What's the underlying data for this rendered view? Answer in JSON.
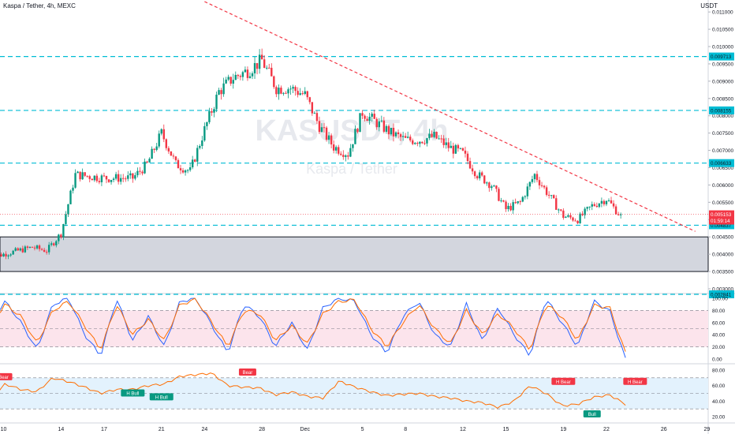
{
  "header": {
    "symbol_title": "Kaspa / Tether, 4h, MEXC",
    "currency": "USDT"
  },
  "watermark": {
    "ticker": "KASUSDT, 4h",
    "name": "Kaspa / Tether"
  },
  "colors": {
    "up": "#089981",
    "down": "#f23645",
    "level_line": "#00bcd4",
    "trend_line": "#f23645",
    "zone_fill": "#d1d4dc",
    "stoch_k": "#2962ff",
    "stoch_d": "#ff6d00",
    "rsi_line": "#ff6d00",
    "stoch_band": "#fce4ec",
    "rsi_band": "#e3f2fd"
  },
  "chart_data": [
    {
      "type": "candlestick",
      "pane": "price",
      "ylim": [
        0.003,
        0.0113
      ],
      "y_ticks": [
        "0.011000",
        "0.010500",
        "0.010000",
        "0.009500",
        "0.009000",
        "0.008500",
        "0.008000",
        "0.007500",
        "0.007000",
        "0.006500",
        "0.006000",
        "0.005500",
        "0.005000",
        "0.004500",
        "0.004000",
        "0.003500",
        "0.003000"
      ],
      "y_tick_values": [
        0.011,
        0.0105,
        0.01,
        0.0095,
        0.009,
        0.0085,
        0.008,
        0.0075,
        0.007,
        0.0065,
        0.006,
        0.0055,
        0.005,
        0.0045,
        0.004,
        0.0035,
        0.003
      ],
      "x_tick_labels": [
        "10",
        "14",
        "17",
        "21",
        "24",
        "28",
        "Dec",
        "5",
        "8",
        "12",
        "15",
        "19",
        "22",
        "26",
        "29"
      ],
      "x_tick_dates": [
        "2022-11-10",
        "2022-11-14",
        "2022-11-17",
        "2022-11-21",
        "2022-11-24",
        "2022-11-28",
        "2022-12-01",
        "2022-12-05",
        "2022-12-08",
        "2022-12-12",
        "2022-12-15",
        "2022-12-19",
        "2022-12-22",
        "2022-12-26",
        "2022-12-29"
      ],
      "horizontal_levels": [
        {
          "label": "0.009713",
          "value": 0.009713
        },
        {
          "label": "0.008155",
          "value": 0.008155
        },
        {
          "label": "0.006633",
          "value": 0.006633
        },
        {
          "label": "0.004837",
          "value": 0.004837
        },
        {
          "label": "0.002841",
          "value": 0.002841
        }
      ],
      "last_price": {
        "label": "0.005153",
        "value": 0.005153,
        "countdown": "01:59:14"
      },
      "demand_zone": {
        "from": 0.0035,
        "to": 0.0045
      },
      "trendline": {
        "from": [
          "2022-11-24",
          0.0113
        ],
        "to": [
          "2022-12-26",
          0.00475
        ]
      },
      "ohlc_key_points": {
        "dates": [
          "2022-11-09",
          "2022-11-12",
          "2022-11-13",
          "2022-11-14",
          "2022-11-15",
          "2022-11-17",
          "2022-11-19",
          "2022-11-20",
          "2022-11-21",
          "2022-11-22",
          "2022-11-23",
          "2022-11-24",
          "2022-11-25",
          "2022-11-26",
          "2022-11-27",
          "2022-11-28",
          "2022-11-29",
          "2022-11-30",
          "2022-12-01",
          "2022-12-02",
          "2022-12-03",
          "2022-12-04",
          "2022-12-05",
          "2022-12-06",
          "2022-12-07",
          "2022-12-08",
          "2022-12-09",
          "2022-12-10",
          "2022-12-11",
          "2022-12-12",
          "2022-12-13",
          "2022-12-14",
          "2022-12-15",
          "2022-12-16",
          "2022-12-17",
          "2022-12-18",
          "2022-12-19",
          "2022-12-20",
          "2022-12-21",
          "2022-12-22",
          "2022-12-23"
        ],
        "close": [
          0.0039,
          0.0042,
          0.0041,
          0.0046,
          0.0063,
          0.0062,
          0.0062,
          0.0066,
          0.0075,
          0.0066,
          0.0064,
          0.0076,
          0.0087,
          0.0091,
          0.0093,
          0.0096,
          0.0088,
          0.0088,
          0.0086,
          0.0077,
          0.0071,
          0.0069,
          0.0081,
          0.0078,
          0.0075,
          0.0073,
          0.0073,
          0.0074,
          0.0071,
          0.0069,
          0.0063,
          0.006,
          0.0053,
          0.0055,
          0.0063,
          0.0057,
          0.0051,
          0.005,
          0.0054,
          0.0056,
          0.0051
        ]
      }
    },
    {
      "type": "line",
      "pane": "stochastic",
      "ylim": [
        0,
        100
      ],
      "y_ticks": [
        "100.00",
        "80.00",
        "60.00",
        "40.00",
        "20.00",
        "0.00"
      ],
      "band": [
        20,
        80
      ],
      "series": [
        {
          "color_key": "stoch_k",
          "values": [
            60,
            95,
            60,
            15,
            90,
            100,
            40,
            5,
            100,
            30,
            70,
            20,
            95,
            100,
            55,
            10,
            90,
            70,
            20,
            60,
            15,
            85,
            100,
            95,
            40,
            10,
            70,
            95,
            40,
            20,
            90,
            30,
            85,
            40,
            5,
            100,
            60,
            20,
            95,
            80,
            0
          ]
        },
        {
          "color_key": "stoch_d",
          "values": [
            55,
            90,
            70,
            25,
            80,
            95,
            55,
            15,
            90,
            40,
            65,
            30,
            90,
            98,
            60,
            20,
            80,
            75,
            30,
            55,
            25,
            75,
            95,
            97,
            50,
            20,
            60,
            90,
            50,
            25,
            80,
            40,
            75,
            50,
            15,
            90,
            70,
            30,
            88,
            85,
            10
          ]
        }
      ]
    },
    {
      "type": "line",
      "pane": "rsi",
      "ylim": [
        20,
        80
      ],
      "y_ticks": [
        "80.00",
        "60.00",
        "40.00",
        "20.00"
      ],
      "band": [
        30,
        70
      ],
      "series": [
        {
          "color_key": "rsi_line",
          "values": [
            40,
            62,
            55,
            52,
            70,
            65,
            58,
            50,
            55,
            55,
            60,
            62,
            72,
            74,
            76,
            60,
            58,
            57,
            48,
            52,
            46,
            44,
            66,
            58,
            52,
            47,
            49,
            50,
            46,
            44,
            40,
            38,
            32,
            40,
            60,
            50,
            34,
            36,
            45,
            48,
            36
          ]
        }
      ],
      "annotations": [
        {
          "label": "Bear",
          "date": "2022-11-10",
          "value": 71
        },
        {
          "label": "H Bull",
          "date": "2022-11-19",
          "value": 50
        },
        {
          "label": "H Bull",
          "date": "2022-11-21",
          "value": 45
        },
        {
          "label": "Bear",
          "date": "2022-11-27",
          "value": 77
        },
        {
          "label": "H Bear",
          "date": "2022-12-19",
          "value": 65
        },
        {
          "label": "Bull",
          "date": "2022-12-21",
          "value": 23
        },
        {
          "label": "H Bear",
          "date": "2022-12-24",
          "value": 65
        }
      ]
    }
  ]
}
